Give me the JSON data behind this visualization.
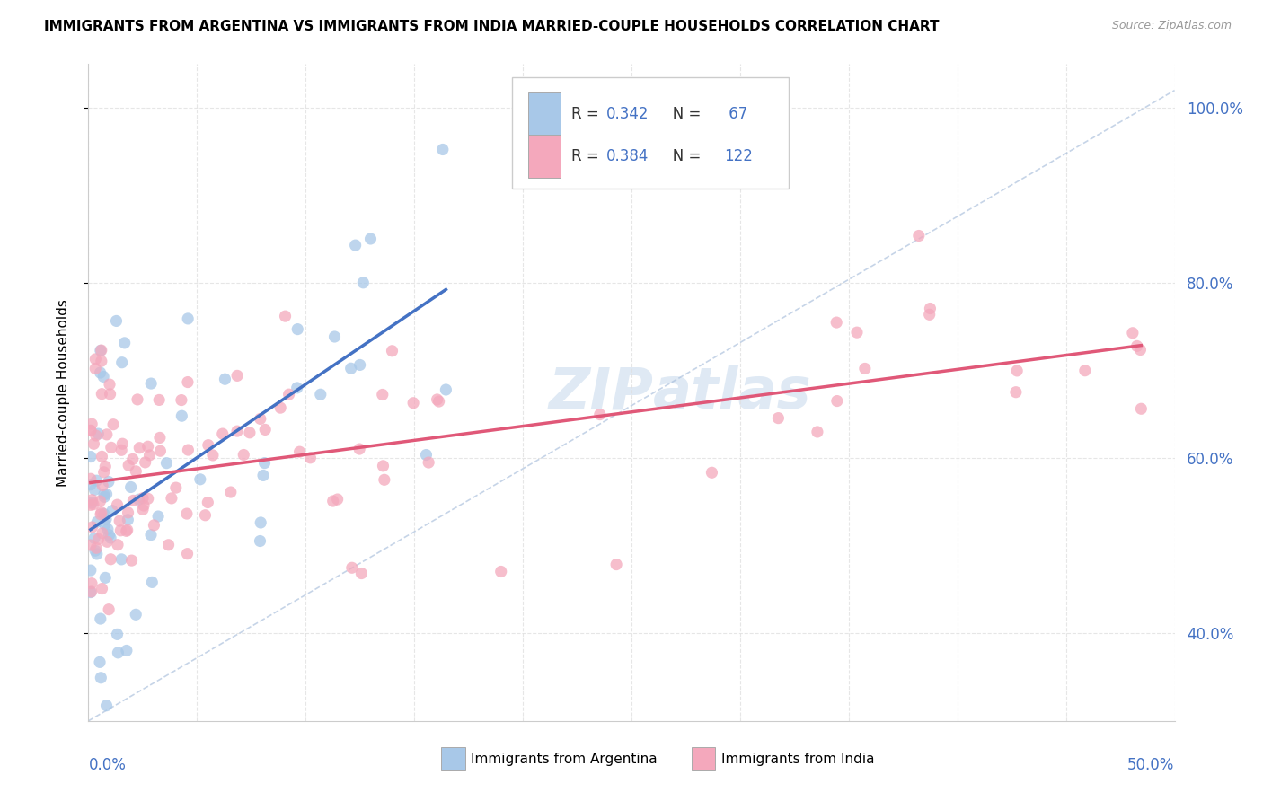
{
  "title": "IMMIGRANTS FROM ARGENTINA VS IMMIGRANTS FROM INDIA MARRIED-COUPLE HOUSEHOLDS CORRELATION CHART",
  "source": "Source: ZipAtlas.com",
  "ylabel": "Married-couple Households",
  "xlim": [
    0.0,
    0.5
  ],
  "ylim": [
    0.3,
    1.05
  ],
  "watermark": "ZIPAtlas",
  "legend_r1": "0.342",
  "legend_n1": "67",
  "legend_r2": "0.384",
  "legend_n2": "122",
  "color_argentina": "#a8c8e8",
  "color_india": "#f4a8bc",
  "color_trend_argentina": "#4472c4",
  "color_trend_india": "#e05878",
  "color_diagonal": "#a0b8d8",
  "color_text_blue": "#4472c4",
  "color_grid": "#e0e0e0",
  "background_color": "#ffffff"
}
